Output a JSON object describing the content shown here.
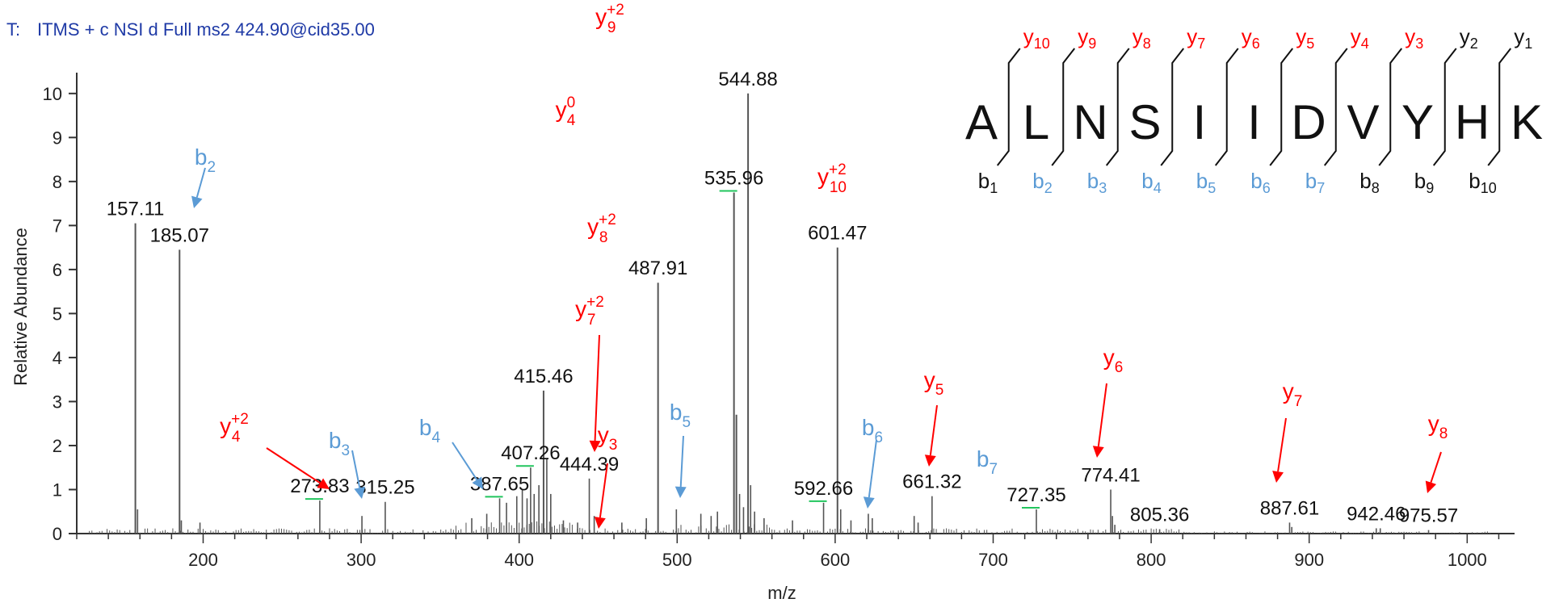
{
  "header": {
    "scan_label": "T:",
    "scan_filter": "ITMS + c NSI d Full ms2 424.90@cid35.00"
  },
  "colors": {
    "spectrum": "#555555",
    "y_ion": "#ff0000",
    "b_ion": "#5b9bd5",
    "black": "#111111",
    "shoulder": "#22c55e",
    "header": "#1f3aa6"
  },
  "chart_data": {
    "type": "bar",
    "xlabel": "m/z",
    "ylabel": "Relative Abundance",
    "xlim": [
      120,
      1030
    ],
    "ylim": [
      0,
      10.4
    ],
    "xticks": [
      200,
      300,
      400,
      500,
      600,
      700,
      800,
      900,
      1000
    ],
    "yticks": [
      0,
      1,
      2,
      3,
      4,
      5,
      6,
      7,
      8,
      9,
      10
    ],
    "peaks": [
      {
        "mz": 157.11,
        "i": 7.05,
        "label": "157.11"
      },
      {
        "mz": 185.07,
        "i": 6.45,
        "label": "185.07"
      },
      {
        "mz": 273.83,
        "i": 0.75,
        "label": "273.83"
      },
      {
        "mz": 315.25,
        "i": 0.72,
        "label": "315.25"
      },
      {
        "mz": 387.65,
        "i": 0.8,
        "label": "387.65"
      },
      {
        "mz": 407.26,
        "i": 1.5,
        "label": "407.26"
      },
      {
        "mz": 415.46,
        "i": 3.25,
        "label": "415.46"
      },
      {
        "mz": 444.39,
        "i": 1.25,
        "label": "444.39"
      },
      {
        "mz": 487.91,
        "i": 5.7,
        "label": "487.91"
      },
      {
        "mz": 535.96,
        "i": 7.75,
        "label": "535.96"
      },
      {
        "mz": 544.88,
        "i": 10.0,
        "label": "544.88"
      },
      {
        "mz": 592.66,
        "i": 0.7,
        "label": "592.66"
      },
      {
        "mz": 601.47,
        "i": 6.5,
        "label": "601.47"
      },
      {
        "mz": 661.32,
        "i": 0.85,
        "label": "661.32"
      },
      {
        "mz": 727.35,
        "i": 0.55,
        "label": "727.35"
      },
      {
        "mz": 774.41,
        "i": 1.0,
        "label": "774.41"
      },
      {
        "mz": 805.36,
        "i": 0.1,
        "label": "805.36"
      },
      {
        "mz": 887.61,
        "i": 0.25,
        "label": "887.61"
      },
      {
        "mz": 942.46,
        "i": 0.12,
        "label": "942.46"
      },
      {
        "mz": 975.57,
        "i": 0.08,
        "label": "975.57"
      },
      {
        "mz": 158.5,
        "i": 0.55
      },
      {
        "mz": 186.2,
        "i": 0.3
      },
      {
        "mz": 198.0,
        "i": 0.25
      },
      {
        "mz": 300.5,
        "i": 0.4
      },
      {
        "mz": 370.0,
        "i": 0.35
      },
      {
        "mz": 379.5,
        "i": 0.45
      },
      {
        "mz": 392.0,
        "i": 0.7
      },
      {
        "mz": 398.5,
        "i": 0.85
      },
      {
        "mz": 402.0,
        "i": 1.0
      },
      {
        "mz": 405.0,
        "i": 0.8
      },
      {
        "mz": 409.5,
        "i": 0.9
      },
      {
        "mz": 412.5,
        "i": 1.1
      },
      {
        "mz": 417.5,
        "i": 1.7
      },
      {
        "mz": 420.0,
        "i": 0.9
      },
      {
        "mz": 428.0,
        "i": 0.3
      },
      {
        "mz": 437.0,
        "i": 0.25
      },
      {
        "mz": 447.5,
        "i": 0.4
      },
      {
        "mz": 465.0,
        "i": 0.25
      },
      {
        "mz": 480.5,
        "i": 0.35
      },
      {
        "mz": 499.5,
        "i": 0.55
      },
      {
        "mz": 515.0,
        "i": 0.45
      },
      {
        "mz": 521.5,
        "i": 0.4
      },
      {
        "mz": 525.5,
        "i": 0.5
      },
      {
        "mz": 537.5,
        "i": 2.7
      },
      {
        "mz": 539.5,
        "i": 0.9
      },
      {
        "mz": 542.0,
        "i": 0.6
      },
      {
        "mz": 546.5,
        "i": 1.1
      },
      {
        "mz": 549.0,
        "i": 0.5
      },
      {
        "mz": 555.0,
        "i": 0.35
      },
      {
        "mz": 573.0,
        "i": 0.3
      },
      {
        "mz": 603.5,
        "i": 0.55
      },
      {
        "mz": 610.0,
        "i": 0.3
      },
      {
        "mz": 621.0,
        "i": 0.45
      },
      {
        "mz": 623.5,
        "i": 0.35
      },
      {
        "mz": 650.0,
        "i": 0.4
      },
      {
        "mz": 652.5,
        "i": 0.25
      },
      {
        "mz": 775.5,
        "i": 0.4
      },
      {
        "mz": 777.0,
        "i": 0.2
      },
      {
        "mz": 889.0,
        "i": 0.15
      },
      {
        "mz": 945.0,
        "i": 0.12
      }
    ],
    "ion_annotations": [
      {
        "base": "y",
        "sup": "+2",
        "sub": "9",
        "color": "y",
        "ax": 755,
        "ay": 30
      },
      {
        "base": "y",
        "sup": "0",
        "sub": "4",
        "color": "y",
        "ax": 700,
        "ay": 145
      },
      {
        "base": "y",
        "sup": "+2",
        "sub": "10",
        "color": "y",
        "ax": 1030,
        "ay": 228
      },
      {
        "base": "y",
        "sup": "+2",
        "sub": "8",
        "color": "y",
        "ax": 745,
        "ay": 290
      },
      {
        "base": "y",
        "sup": "+2",
        "sub": "7",
        "color": "y",
        "ax": 730,
        "ay": 392
      },
      {
        "base": "y",
        "sup": "+2",
        "sub": "4",
        "color": "y",
        "ax": 290,
        "ay": 537
      },
      {
        "base": "y",
        "sup": "",
        "sub": "3",
        "color": "y",
        "ax": 752,
        "ay": 548
      },
      {
        "base": "y",
        "sup": "",
        "sub": "5",
        "color": "y",
        "ax": 1156,
        "ay": 480
      },
      {
        "base": "y",
        "sup": "",
        "sub": "6",
        "color": "y",
        "ax": 1378,
        "ay": 452
      },
      {
        "base": "y",
        "sup": "",
        "sub": "7",
        "color": "y",
        "ax": 1600,
        "ay": 494
      },
      {
        "base": "y",
        "sup": "",
        "sub": "8",
        "color": "y",
        "ax": 1780,
        "ay": 534
      },
      {
        "base": "b",
        "sup": "",
        "sub": "2",
        "color": "b",
        "ax": 254,
        "ay": 204
      },
      {
        "base": "b",
        "sup": "",
        "sub": "3",
        "color": "b",
        "ax": 420,
        "ay": 555
      },
      {
        "base": "b",
        "sup": "",
        "sub": "4",
        "color": "b",
        "ax": 532,
        "ay": 539
      },
      {
        "base": "b",
        "sup": "",
        "sub": "5",
        "color": "b",
        "ax": 842,
        "ay": 520
      },
      {
        "base": "b",
        "sup": "",
        "sub": "6",
        "color": "b",
        "ax": 1080,
        "ay": 539
      },
      {
        "base": "b",
        "sup": "",
        "sub": "7",
        "color": "b",
        "ax": 1222,
        "ay": 578
      }
    ]
  },
  "sequence": {
    "residues": [
      "A",
      "L",
      "N",
      "S",
      "I",
      "I",
      "D",
      "V",
      "Y",
      "H",
      "K"
    ],
    "y_labels": [
      {
        "n": "10",
        "color": "y"
      },
      {
        "n": "9",
        "color": "y"
      },
      {
        "n": "8",
        "color": "y"
      },
      {
        "n": "7",
        "color": "y"
      },
      {
        "n": "6",
        "color": "y"
      },
      {
        "n": "5",
        "color": "y"
      },
      {
        "n": "4",
        "color": "y"
      },
      {
        "n": "3",
        "color": "y"
      },
      {
        "n": "2",
        "color": "k"
      },
      {
        "n": "1",
        "color": "k"
      }
    ],
    "b_labels": [
      {
        "n": "1",
        "color": "k"
      },
      {
        "n": "2",
        "color": "b"
      },
      {
        "n": "3",
        "color": "b"
      },
      {
        "n": "4",
        "color": "b"
      },
      {
        "n": "5",
        "color": "b"
      },
      {
        "n": "6",
        "color": "b"
      },
      {
        "n": "7",
        "color": "b"
      },
      {
        "n": "8",
        "color": "k"
      },
      {
        "n": "9",
        "color": "k"
      },
      {
        "n": "10",
        "color": "k"
      }
    ]
  }
}
